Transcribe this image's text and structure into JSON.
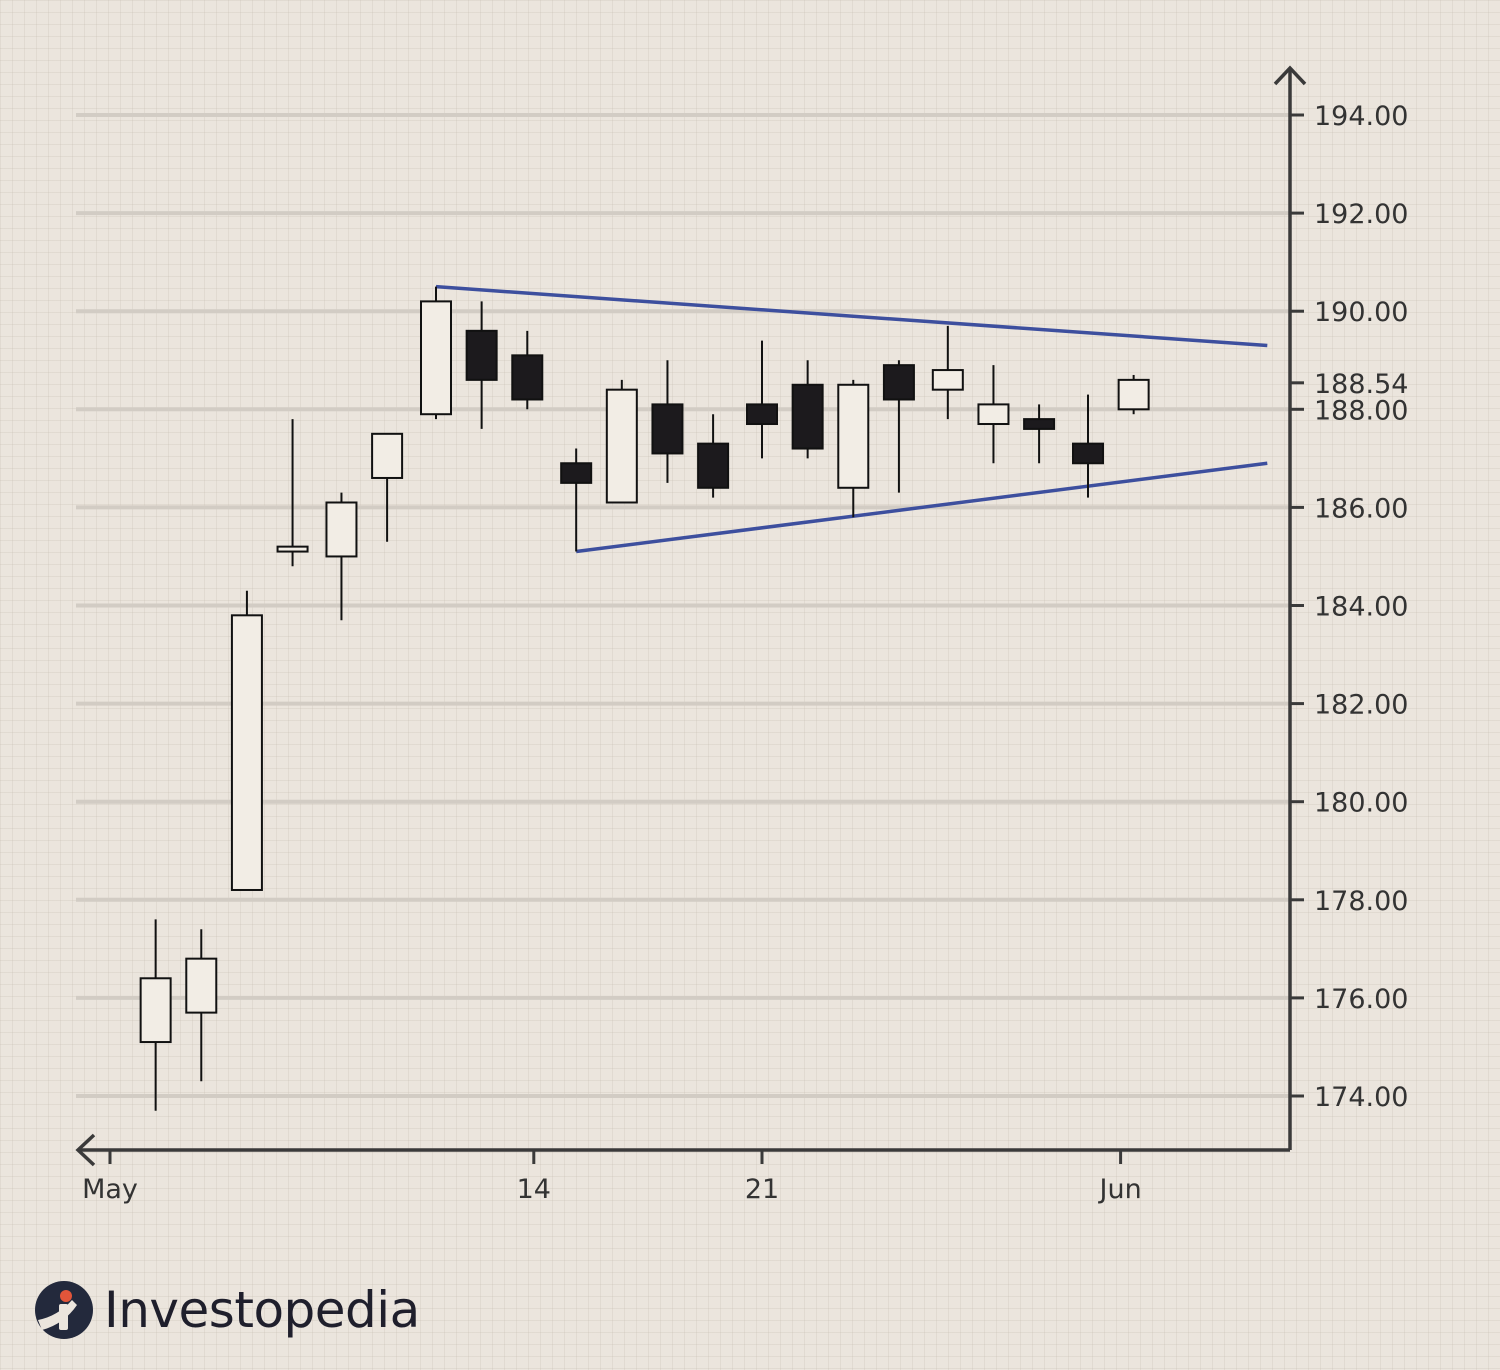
{
  "chart_data": {
    "type": "candlestick",
    "y_ticks": [
      174,
      176,
      178,
      180,
      182,
      184,
      186,
      188,
      188.54,
      190,
      192,
      194
    ],
    "ylim": [
      172.9,
      195.6
    ],
    "x_labels": [
      {
        "label": "May",
        "day": 0
      },
      {
        "label": "14",
        "day": 13
      },
      {
        "label": "21",
        "day": 20
      },
      {
        "label": "Jun",
        "day": 31
      }
    ],
    "grid": true,
    "candles": [
      {
        "x": 1.4,
        "open": 175.1,
        "high": 177.6,
        "low": 173.7,
        "close": 176.4
      },
      {
        "x": 2.8,
        "open": 175.7,
        "high": 177.4,
        "low": 174.3,
        "close": 176.8
      },
      {
        "x": 4.2,
        "open": 178.2,
        "high": 184.3,
        "low": 178.2,
        "close": 183.8
      },
      {
        "x": 5.6,
        "open": 185.1,
        "high": 187.8,
        "low": 184.8,
        "close": 185.2
      },
      {
        "x": 7.1,
        "open": 185.0,
        "high": 186.3,
        "low": 183.7,
        "close": 186.1
      },
      {
        "x": 8.5,
        "open": 186.6,
        "high": 187.5,
        "low": 185.3,
        "close": 187.5
      },
      {
        "x": 10.0,
        "open": 187.9,
        "high": 190.5,
        "low": 187.8,
        "close": 190.2
      },
      {
        "x": 11.4,
        "open": 189.6,
        "high": 190.2,
        "low": 187.6,
        "close": 188.6
      },
      {
        "x": 12.8,
        "open": 189.1,
        "high": 189.6,
        "low": 188.0,
        "close": 188.2
      },
      {
        "x": 14.3,
        "open": 186.9,
        "high": 187.2,
        "low": 185.1,
        "close": 186.5
      },
      {
        "x": 15.7,
        "open": 186.1,
        "high": 188.6,
        "low": 186.1,
        "close": 188.4
      },
      {
        "x": 17.1,
        "open": 188.1,
        "high": 189.0,
        "low": 186.5,
        "close": 187.1
      },
      {
        "x": 18.5,
        "open": 187.3,
        "high": 187.9,
        "low": 186.2,
        "close": 186.4
      },
      {
        "x": 20.0,
        "open": 188.1,
        "high": 189.4,
        "low": 187.0,
        "close": 187.7
      },
      {
        "x": 21.4,
        "open": 188.5,
        "high": 189.0,
        "low": 187.0,
        "close": 187.2
      },
      {
        "x": 22.8,
        "open": 186.4,
        "high": 188.6,
        "low": 185.8,
        "close": 188.5
      },
      {
        "x": 24.2,
        "open": 188.9,
        "high": 189.0,
        "low": 186.3,
        "close": 188.2
      },
      {
        "x": 25.7,
        "open": 188.4,
        "high": 189.7,
        "low": 187.8,
        "close": 188.8
      },
      {
        "x": 27.1,
        "open": 187.7,
        "high": 188.9,
        "low": 186.9,
        "close": 188.1
      },
      {
        "x": 28.5,
        "open": 187.8,
        "high": 188.1,
        "low": 186.9,
        "close": 187.6
      },
      {
        "x": 30.0,
        "open": 187.3,
        "high": 188.3,
        "low": 186.2,
        "close": 186.9
      },
      {
        "x": 31.4,
        "open": 188.0,
        "high": 188.7,
        "low": 187.9,
        "close": 188.6
      }
    ],
    "trendlines": [
      {
        "x1": 10.0,
        "y1": 190.5,
        "x2": 35.5,
        "y2": 189.3
      },
      {
        "x1": 14.3,
        "y1": 185.1,
        "x2": 35.5,
        "y2": 186.9
      }
    ],
    "colors": {
      "bullish": "#f2ede5",
      "bearish": "#1c1a1d",
      "trendline": "#3d4f9e",
      "axis": "#3a3a3a",
      "grid": "#d2ccc4"
    }
  },
  "brand": {
    "name": "Investopedia",
    "icon": "investopedia-logo-icon",
    "accent": "#e2553a",
    "dark": "#23293c"
  }
}
